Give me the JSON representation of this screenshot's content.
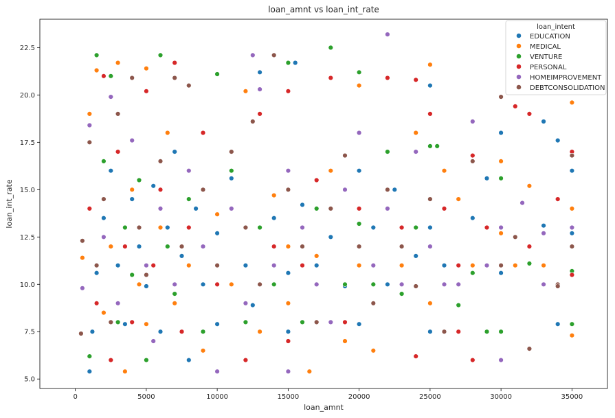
{
  "chart_data": {
    "type": "scatter",
    "title": "loan_amnt vs loan_int_rate",
    "xlabel": "loan_amnt",
    "ylabel": "loan_int_rate",
    "xlim": [
      -2500,
      37500
    ],
    "ylim": [
      4.5,
      24.0
    ],
    "xticks": [
      0,
      5000,
      10000,
      15000,
      20000,
      25000,
      30000,
      35000
    ],
    "xtick_labels": [
      "0",
      "5000",
      "10000",
      "15000",
      "20000",
      "25000",
      "30000",
      "35000"
    ],
    "yticks": [
      5.0,
      7.5,
      10.0,
      12.5,
      15.0,
      17.5,
      20.0,
      22.5
    ],
    "ytick_labels": [
      "5.0",
      "7.5",
      "10.0",
      "12.5",
      "15.0",
      "17.5",
      "20.0",
      "22.5"
    ],
    "grid": false,
    "legend_title": "loan_intent",
    "legend_position": "top-right",
    "series": [
      {
        "name": "EDUCATION",
        "color": "#1f77b4",
        "points": [
          [
            1000,
            5.4
          ],
          [
            1200,
            7.5
          ],
          [
            1500,
            10.6
          ],
          [
            2000,
            13.5
          ],
          [
            2500,
            16.0
          ],
          [
            3000,
            11.0
          ],
          [
            3500,
            7.9
          ],
          [
            4000,
            14.5
          ],
          [
            4500,
            12.0
          ],
          [
            5000,
            9.9
          ],
          [
            5500,
            15.2
          ],
          [
            6000,
            7.5
          ],
          [
            6500,
            13.0
          ],
          [
            7000,
            17.0
          ],
          [
            7500,
            11.5
          ],
          [
            8000,
            6.0
          ],
          [
            8500,
            14.0
          ],
          [
            9000,
            10.0
          ],
          [
            10000,
            12.7
          ],
          [
            10000,
            7.9
          ],
          [
            11000,
            15.6
          ],
          [
            12000,
            11.0
          ],
          [
            12500,
            8.9
          ],
          [
            13000,
            21.2
          ],
          [
            14000,
            13.5
          ],
          [
            15000,
            10.6
          ],
          [
            15000,
            7.5
          ],
          [
            15500,
            21.7
          ],
          [
            16000,
            14.2
          ],
          [
            17000,
            11.0
          ],
          [
            18000,
            12.5
          ],
          [
            19000,
            9.9
          ],
          [
            20000,
            16.0
          ],
          [
            20000,
            7.9
          ],
          [
            21000,
            13.0
          ],
          [
            22000,
            10.0
          ],
          [
            22500,
            15.0
          ],
          [
            24000,
            11.5
          ],
          [
            25000,
            20.5
          ],
          [
            25000,
            7.5
          ],
          [
            25000,
            13.0
          ],
          [
            26000,
            11.0
          ],
          [
            28000,
            13.5
          ],
          [
            29000,
            15.6
          ],
          [
            30000,
            10.6
          ],
          [
            30000,
            18.0
          ],
          [
            33000,
            18.6
          ],
          [
            33000,
            13.1
          ],
          [
            34000,
            17.6
          ],
          [
            34000,
            7.9
          ],
          [
            35000,
            12.7
          ],
          [
            35000,
            16.0
          ]
        ]
      },
      {
        "name": "MEDICAL",
        "color": "#ff7f0e",
        "points": [
          [
            500,
            11.4
          ],
          [
            1000,
            19.0
          ],
          [
            1500,
            21.3
          ],
          [
            2000,
            8.5
          ],
          [
            2500,
            12.0
          ],
          [
            3000,
            21.7
          ],
          [
            3500,
            5.4
          ],
          [
            4000,
            15.0
          ],
          [
            4500,
            10.0
          ],
          [
            5000,
            21.4
          ],
          [
            5000,
            7.9
          ],
          [
            6000,
            13.0
          ],
          [
            6500,
            18.0
          ],
          [
            7000,
            9.0
          ],
          [
            8000,
            11.0
          ],
          [
            8000,
            16.0
          ],
          [
            9000,
            6.5
          ],
          [
            10000,
            13.7
          ],
          [
            11000,
            10.0
          ],
          [
            12000,
            20.2
          ],
          [
            13000,
            7.5
          ],
          [
            14000,
            14.7
          ],
          [
            15000,
            12.0
          ],
          [
            15000,
            9.0
          ],
          [
            16500,
            5.4
          ],
          [
            17000,
            11.5
          ],
          [
            18000,
            16.0
          ],
          [
            19000,
            7.0
          ],
          [
            20000,
            20.5
          ],
          [
            20000,
            11.0
          ],
          [
            21000,
            6.5
          ],
          [
            22000,
            14.0
          ],
          [
            23000,
            11.0
          ],
          [
            24000,
            18.0
          ],
          [
            25000,
            21.6
          ],
          [
            25000,
            9.0
          ],
          [
            26000,
            16.0
          ],
          [
            27000,
            14.5
          ],
          [
            28000,
            11.0
          ],
          [
            30000,
            12.7
          ],
          [
            30000,
            16.5
          ],
          [
            31000,
            11.0
          ],
          [
            32000,
            15.2
          ],
          [
            33000,
            11.0
          ],
          [
            35000,
            7.3
          ],
          [
            35000,
            19.6
          ],
          [
            35000,
            14.0
          ]
        ]
      },
      {
        "name": "VENTURE",
        "color": "#2ca02c",
        "points": [
          [
            1000,
            6.2
          ],
          [
            1500,
            22.1
          ],
          [
            2000,
            16.5
          ],
          [
            2500,
            21.0
          ],
          [
            3000,
            8.0
          ],
          [
            3500,
            13.0
          ],
          [
            4000,
            10.5
          ],
          [
            4500,
            15.5
          ],
          [
            5000,
            6.0
          ],
          [
            6000,
            22.1
          ],
          [
            6500,
            12.0
          ],
          [
            7000,
            9.5
          ],
          [
            8000,
            14.5
          ],
          [
            9000,
            7.5
          ],
          [
            10000,
            21.1
          ],
          [
            10000,
            11.0
          ],
          [
            11000,
            16.0
          ],
          [
            12000,
            8.0
          ],
          [
            13000,
            13.0
          ],
          [
            14000,
            10.0
          ],
          [
            15000,
            21.7
          ],
          [
            16000,
            8.0
          ],
          [
            17000,
            14.0
          ],
          [
            18000,
            22.5
          ],
          [
            19000,
            10.0
          ],
          [
            20000,
            21.2
          ],
          [
            20000,
            13.2
          ],
          [
            21000,
            10.0
          ],
          [
            22000,
            17.0
          ],
          [
            23000,
            9.5
          ],
          [
            24000,
            13.0
          ],
          [
            25000,
            17.3
          ],
          [
            25500,
            17.3
          ],
          [
            27000,
            8.9
          ],
          [
            28000,
            10.6
          ],
          [
            29000,
            7.5
          ],
          [
            30000,
            15.6
          ],
          [
            30000,
            7.5
          ],
          [
            32000,
            11.1
          ],
          [
            35000,
            10.7
          ],
          [
            35000,
            7.9
          ]
        ]
      },
      {
        "name": "PERSONAL",
        "color": "#d62728",
        "points": [
          [
            1000,
            14.0
          ],
          [
            1500,
            9.0
          ],
          [
            2000,
            21.0
          ],
          [
            2500,
            6.0
          ],
          [
            3000,
            17.0
          ],
          [
            3500,
            12.0
          ],
          [
            4000,
            8.0
          ],
          [
            5000,
            20.2
          ],
          [
            5500,
            11.0
          ],
          [
            6000,
            15.0
          ],
          [
            7000,
            21.7
          ],
          [
            7500,
            7.5
          ],
          [
            8000,
            13.0
          ],
          [
            9000,
            18.0
          ],
          [
            10000,
            10.0
          ],
          [
            11000,
            14.0
          ],
          [
            12000,
            6.0
          ],
          [
            13000,
            19.0
          ],
          [
            14000,
            12.0
          ],
          [
            15000,
            20.2
          ],
          [
            15000,
            7.0
          ],
          [
            16000,
            11.0
          ],
          [
            17000,
            15.5
          ],
          [
            18000,
            20.9
          ],
          [
            19000,
            8.0
          ],
          [
            20000,
            14.0
          ],
          [
            21000,
            11.0
          ],
          [
            22000,
            20.9
          ],
          [
            23000,
            13.0
          ],
          [
            24000,
            20.8
          ],
          [
            24000,
            6.2
          ],
          [
            25000,
            19.0
          ],
          [
            26000,
            14.0
          ],
          [
            27000,
            11.0
          ],
          [
            27000,
            7.5
          ],
          [
            28000,
            16.8
          ],
          [
            28000,
            6.0
          ],
          [
            29000,
            13.0
          ],
          [
            30000,
            11.0
          ],
          [
            31000,
            19.4
          ],
          [
            32000,
            19.0
          ],
          [
            32000,
            12.0
          ],
          [
            34000,
            14.5
          ],
          [
            35000,
            17.0
          ],
          [
            35000,
            10.5
          ]
        ]
      },
      {
        "name": "HOMEIMPROVEMENT",
        "color": "#9467bd",
        "points": [
          [
            500,
            9.8
          ],
          [
            1000,
            18.4
          ],
          [
            2000,
            12.5
          ],
          [
            2500,
            19.9
          ],
          [
            3000,
            9.0
          ],
          [
            4000,
            17.6
          ],
          [
            5000,
            11.0
          ],
          [
            5500,
            7.0
          ],
          [
            6000,
            14.0
          ],
          [
            7000,
            10.0
          ],
          [
            8000,
            16.0
          ],
          [
            9000,
            12.0
          ],
          [
            10000,
            5.4
          ],
          [
            11000,
            14.0
          ],
          [
            12000,
            9.0
          ],
          [
            12500,
            22.1
          ],
          [
            13000,
            20.3
          ],
          [
            14000,
            11.0
          ],
          [
            15000,
            16.0
          ],
          [
            15000,
            5.4
          ],
          [
            16000,
            13.0
          ],
          [
            17000,
            10.0
          ],
          [
            18000,
            8.0
          ],
          [
            19000,
            15.0
          ],
          [
            20000,
            18.0
          ],
          [
            21000,
            11.0
          ],
          [
            22000,
            23.2
          ],
          [
            22000,
            14.0
          ],
          [
            23000,
            10.0
          ],
          [
            24000,
            17.0
          ],
          [
            25000,
            12.0
          ],
          [
            26000,
            10.0
          ],
          [
            27000,
            10.0
          ],
          [
            28000,
            18.6
          ],
          [
            29000,
            11.0
          ],
          [
            30000,
            6.0
          ],
          [
            30000,
            13.0
          ],
          [
            31500,
            14.3
          ],
          [
            33000,
            12.7
          ],
          [
            33000,
            10.0
          ],
          [
            35000,
            13.0
          ]
        ]
      },
      {
        "name": "DEBTCONSOLIDATION",
        "color": "#8c564b",
        "points": [
          [
            400,
            7.4
          ],
          [
            500,
            12.3
          ],
          [
            1000,
            17.5
          ],
          [
            1500,
            11.0
          ],
          [
            2000,
            14.5
          ],
          [
            2500,
            8.0
          ],
          [
            3000,
            19.0
          ],
          [
            4000,
            20.9
          ],
          [
            4500,
            13.0
          ],
          [
            5000,
            10.5
          ],
          [
            6000,
            16.5
          ],
          [
            7000,
            20.9
          ],
          [
            7500,
            12.0
          ],
          [
            8000,
            20.5
          ],
          [
            9000,
            15.0
          ],
          [
            10000,
            11.0
          ],
          [
            11000,
            17.0
          ],
          [
            12000,
            13.0
          ],
          [
            12500,
            18.6
          ],
          [
            13000,
            10.0
          ],
          [
            14000,
            22.1
          ],
          [
            15000,
            15.0
          ],
          [
            16000,
            12.0
          ],
          [
            17000,
            8.0
          ],
          [
            18000,
            14.0
          ],
          [
            19000,
            16.8
          ],
          [
            20000,
            12.0
          ],
          [
            21000,
            9.0
          ],
          [
            22000,
            15.0
          ],
          [
            23000,
            12.0
          ],
          [
            24000,
            9.9
          ],
          [
            25000,
            14.5
          ],
          [
            26000,
            7.5
          ],
          [
            28000,
            16.5
          ],
          [
            30000,
            19.9
          ],
          [
            30000,
            11.0
          ],
          [
            31000,
            12.5
          ],
          [
            32000,
            6.6
          ],
          [
            34000,
            10.0
          ],
          [
            34000,
            9.9
          ],
          [
            35000,
            16.8
          ],
          [
            35000,
            12.0
          ]
        ]
      }
    ]
  }
}
